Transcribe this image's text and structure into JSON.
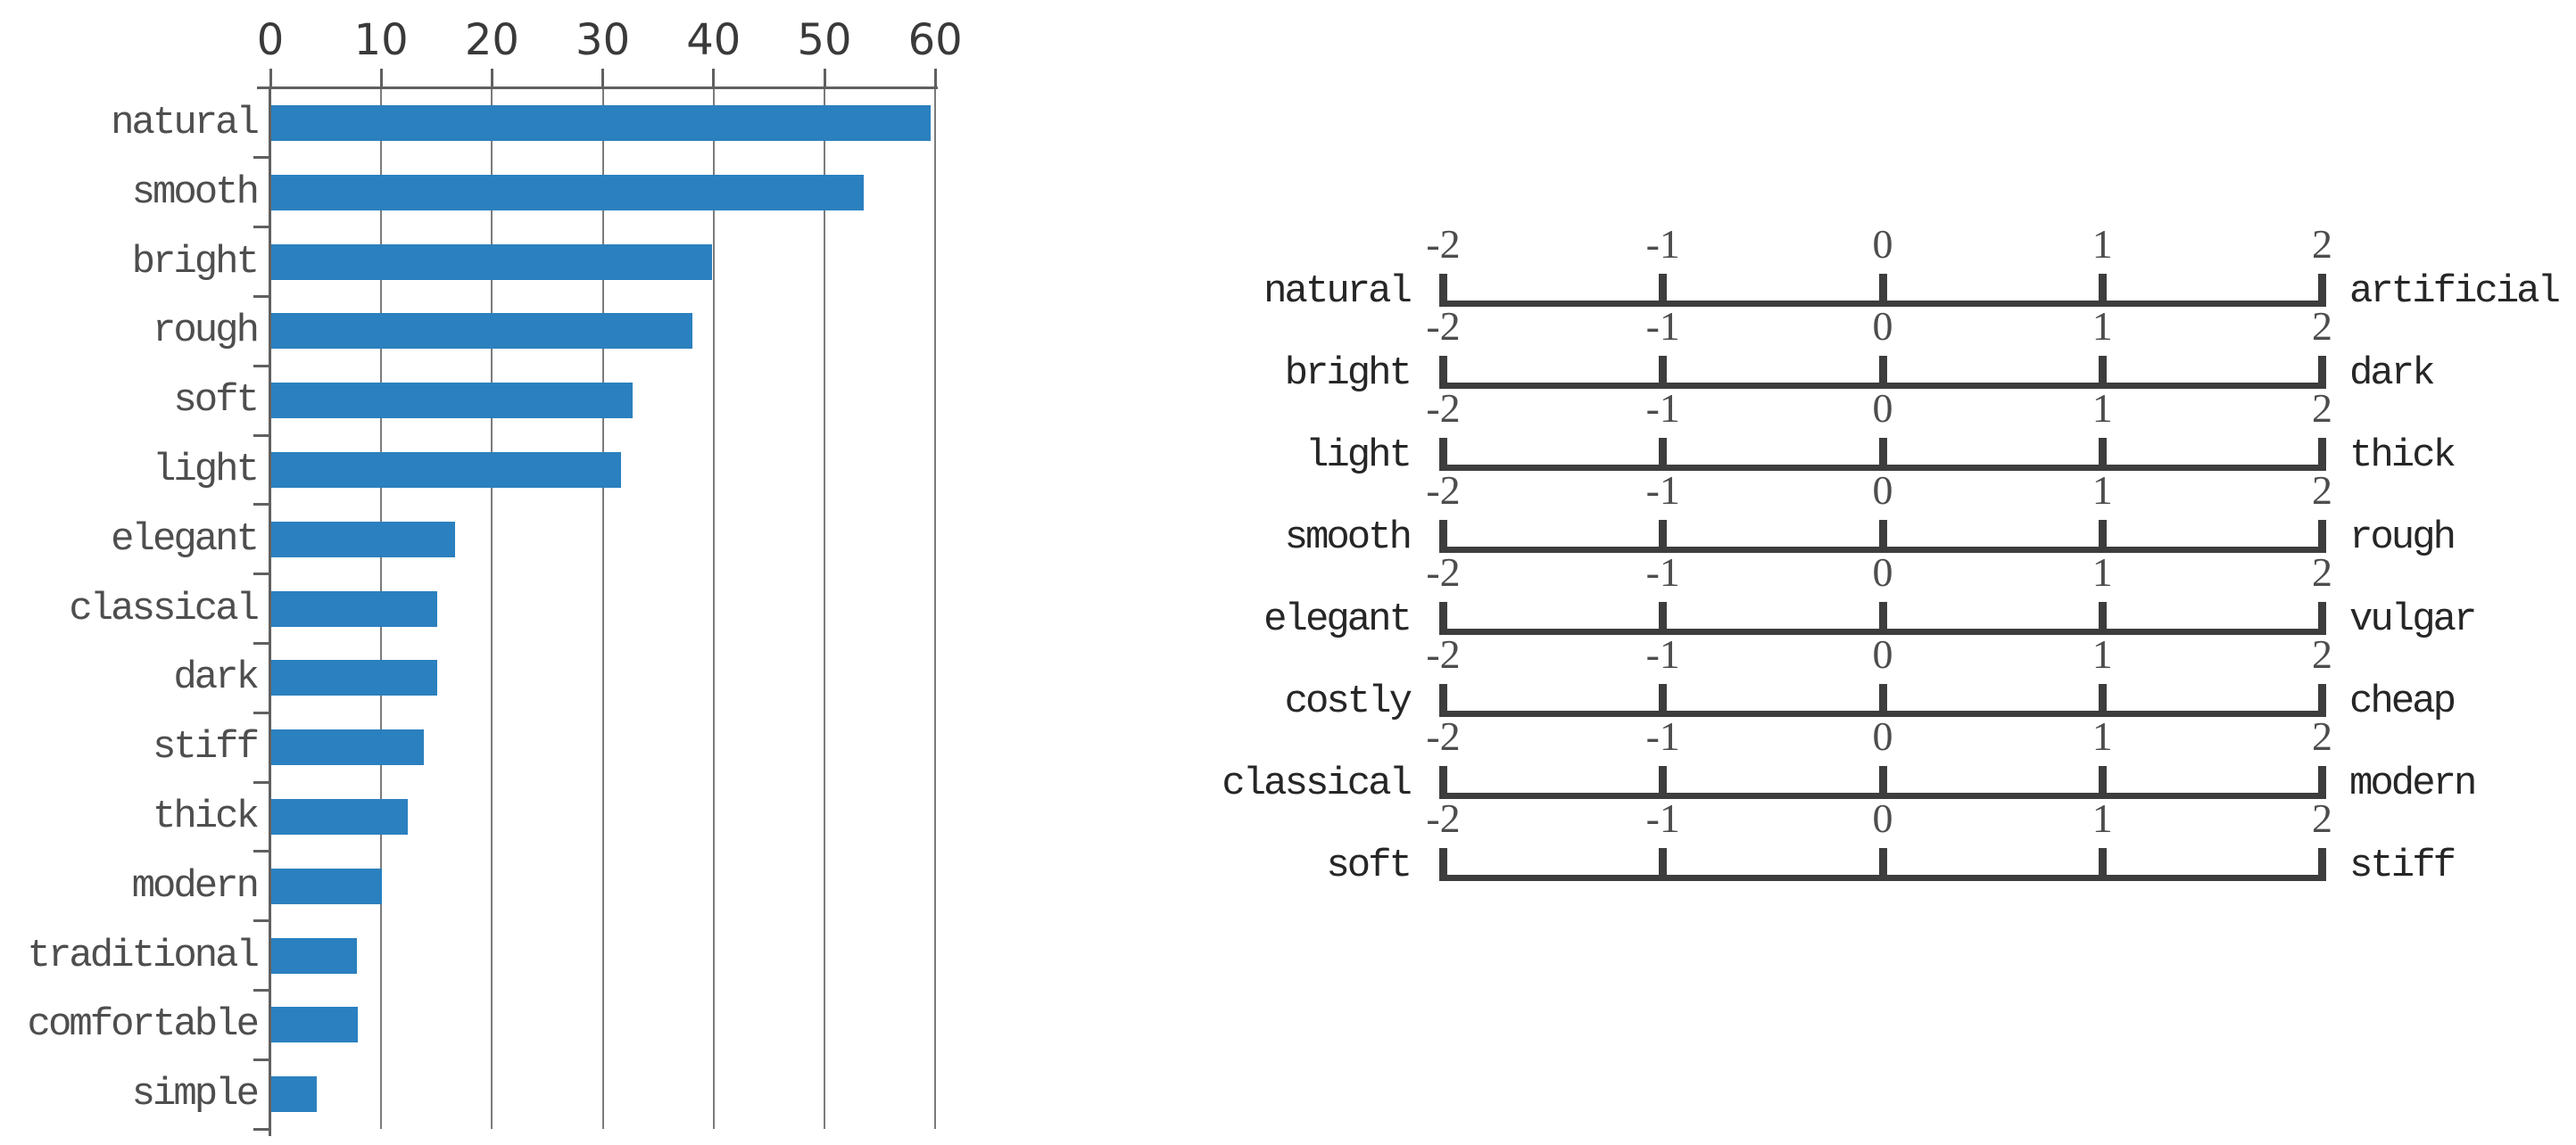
{
  "figure": {
    "background": "#ffffff"
  },
  "chart_data": [
    {
      "type": "bar",
      "orientation": "horizontal",
      "title": "",
      "xlabel": "",
      "ylabel": "",
      "categories": [
        "natural",
        "smooth",
        "bright",
        "rough",
        "soft",
        "light",
        "elegant",
        "classical",
        "dark",
        "stiff",
        "thick",
        "modern",
        "traditional",
        "comfortable",
        "simple"
      ],
      "values": [
        59.5,
        53.5,
        39.8,
        38.0,
        32.6,
        31.6,
        16.6,
        15.0,
        15.0,
        13.8,
        12.3,
        10.0,
        7.7,
        7.8,
        4.1
      ],
      "x_ticks": [
        0,
        10,
        20,
        30,
        40,
        50,
        60
      ],
      "x_tick_labels": [
        "0",
        "10",
        "20",
        "30",
        "40",
        "50",
        "60"
      ],
      "xlim": [
        0,
        60
      ],
      "grid": true,
      "legend": false,
      "ticks_position": "top",
      "colors": {
        "bar": "#2b80bf",
        "grid": "#7b7b7b",
        "axis": "#606060",
        "tick_text": "#3a3a3a",
        "category_text": "#4e4e4e"
      }
    },
    {
      "type": "semantic-differential-scale",
      "axis_range": [
        -2,
        2
      ],
      "tick_labels": [
        "-2",
        "-1",
        "0",
        "1",
        "2"
      ],
      "rows": [
        {
          "left": "natural",
          "right": "artificial"
        },
        {
          "left": "bright",
          "right": "dark"
        },
        {
          "left": "light",
          "right": "thick"
        },
        {
          "left": "smooth",
          "right": "rough"
        },
        {
          "left": "elegant",
          "right": "vulgar"
        },
        {
          "left": "costly",
          "right": "cheap"
        },
        {
          "left": "classical",
          "right": "modern"
        },
        {
          "left": "soft",
          "right": "stiff"
        }
      ],
      "colors": {
        "line": "#3d3d3d",
        "number_text": "#4d4d4d",
        "word_text": "#262626"
      }
    }
  ]
}
